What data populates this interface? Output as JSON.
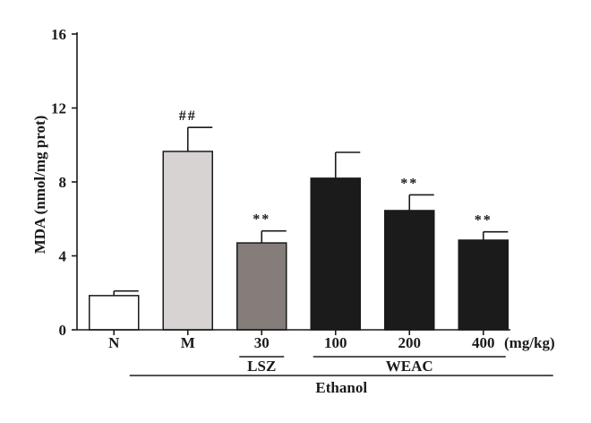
{
  "chart_data": {
    "type": "bar",
    "ylabel": "MDA (nmol/mg prot)",
    "ylim": [
      0,
      16
    ],
    "yticks": [
      "0",
      "4",
      "8",
      "12",
      "16"
    ],
    "categories": [
      "N",
      "M",
      "30",
      "100",
      "200",
      "400"
    ],
    "values": [
      1.85,
      9.65,
      4.7,
      8.2,
      6.45,
      4.85
    ],
    "errors": [
      0.25,
      1.3,
      0.65,
      1.4,
      0.85,
      0.45
    ],
    "annotations": [
      "",
      "##",
      "**",
      "",
      "**",
      "**"
    ],
    "bar_colors": [
      "#ffffff",
      "#d8d3d3",
      "#857d7a",
      "#1b1b1b",
      "#1b1b1b",
      "#1b1b1b"
    ],
    "unit_label": "(mg/kg)",
    "groups": [
      {
        "label": "LSZ",
        "from": 2,
        "to": 2
      },
      {
        "label": "WEAC",
        "from": 3,
        "to": 5
      },
      {
        "label": "Ethanol",
        "from": 1,
        "to": 5
      }
    ]
  }
}
